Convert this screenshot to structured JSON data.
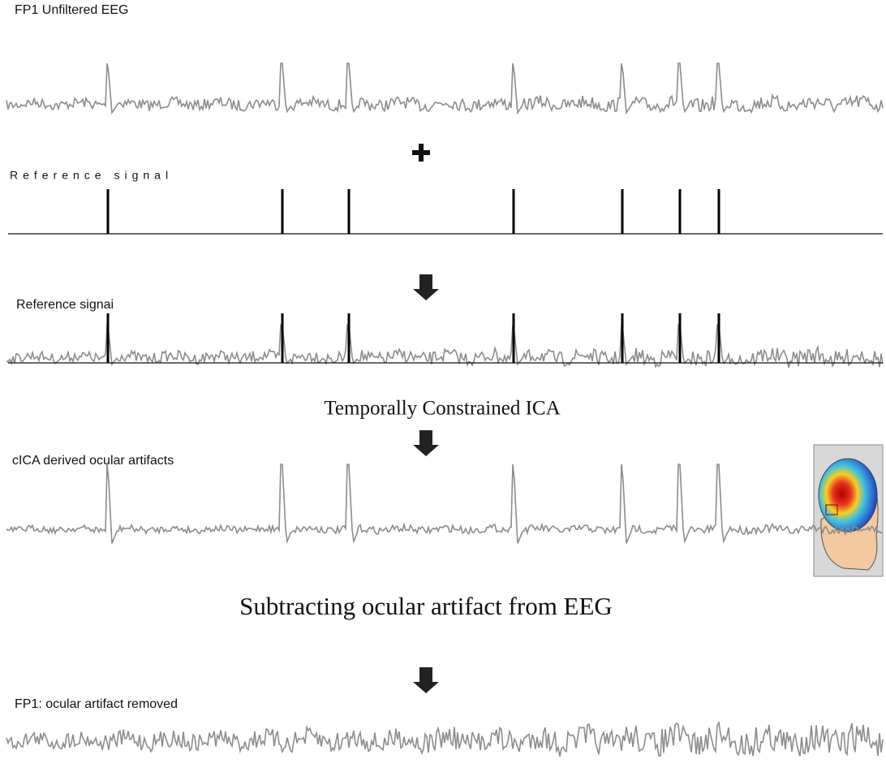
{
  "panels": {
    "unfiltered": {
      "label": "FP1 Unfiltered EEG"
    },
    "reference": {
      "label": "Reference signal"
    },
    "combined": {
      "label": "Reference signai"
    },
    "method": {
      "label": "Temporally Constrained ICA"
    },
    "artifacts": {
      "label": "cICA derived ocular artifacts"
    },
    "subtraction": {
      "label": "Subtracting ocular artifact from EEG"
    },
    "cleaned": {
      "label": "FP1: ocular artifact removed"
    }
  }
}
